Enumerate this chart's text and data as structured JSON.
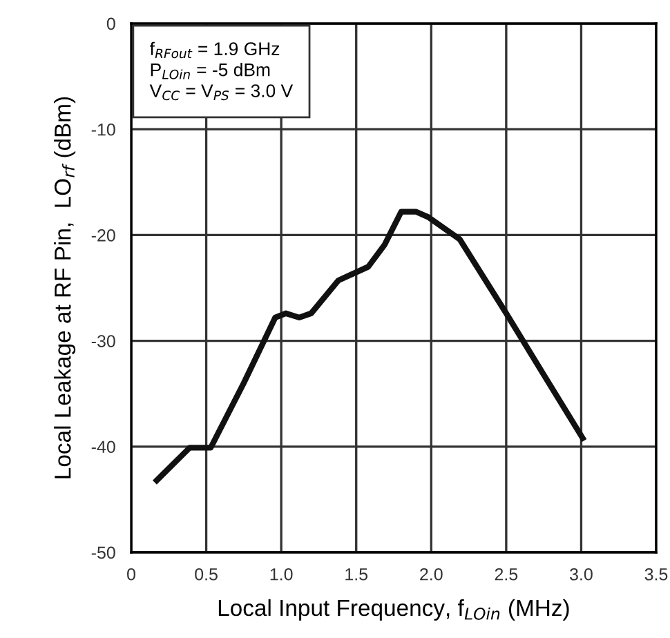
{
  "chart_data": {
    "type": "line",
    "xlabel": "Local Input Frequency, f$_{LOin}$ (MHz)",
    "ylabel": "Local Leakage at RF Pin,  LO$_{rf}$ (dBm)",
    "annotations": [
      "f$_{RFout}$ = 1.9 GHz\nP$_{LOin}$ = -5 dBm\nV$_{CC}$ = V$_{PS}$ = 3.0 V"
    ],
    "x": [
      0.17,
      0.39,
      0.53,
      0.75,
      0.96,
      1.03,
      1.12,
      1.2,
      1.38,
      1.58,
      1.69,
      1.8,
      1.9,
      1.98,
      2.19,
      2.5,
      2.75,
      3.01
    ],
    "series": [
      {
        "color": "#111111",
        "values": [
          -43.2,
          -40.1,
          -40.1,
          -34,
          -27.8,
          -27.4,
          -27.8,
          -27.4,
          -24.3,
          -23,
          -20.9,
          -17.8,
          -17.8,
          -18.3,
          -20.4,
          -27.4,
          -33.2,
          -39.2
        ]
      }
    ],
    "xlim": [
      0,
      3.5
    ],
    "ylim": [
      -50,
      0
    ],
    "xticks": [
      0,
      0.5,
      {
        "value": 1,
        "label": "1.0"
      },
      1.5,
      {
        "value": 2,
        "label": "2.0"
      },
      2.5,
      {
        "value": 3,
        "label": "3.0"
      },
      3.5
    ],
    "yticks": [
      -50,
      -40,
      -30,
      -20,
      -10,
      0
    ],
    "grid": true,
    "marker": "none",
    "line_style": "solid"
  }
}
